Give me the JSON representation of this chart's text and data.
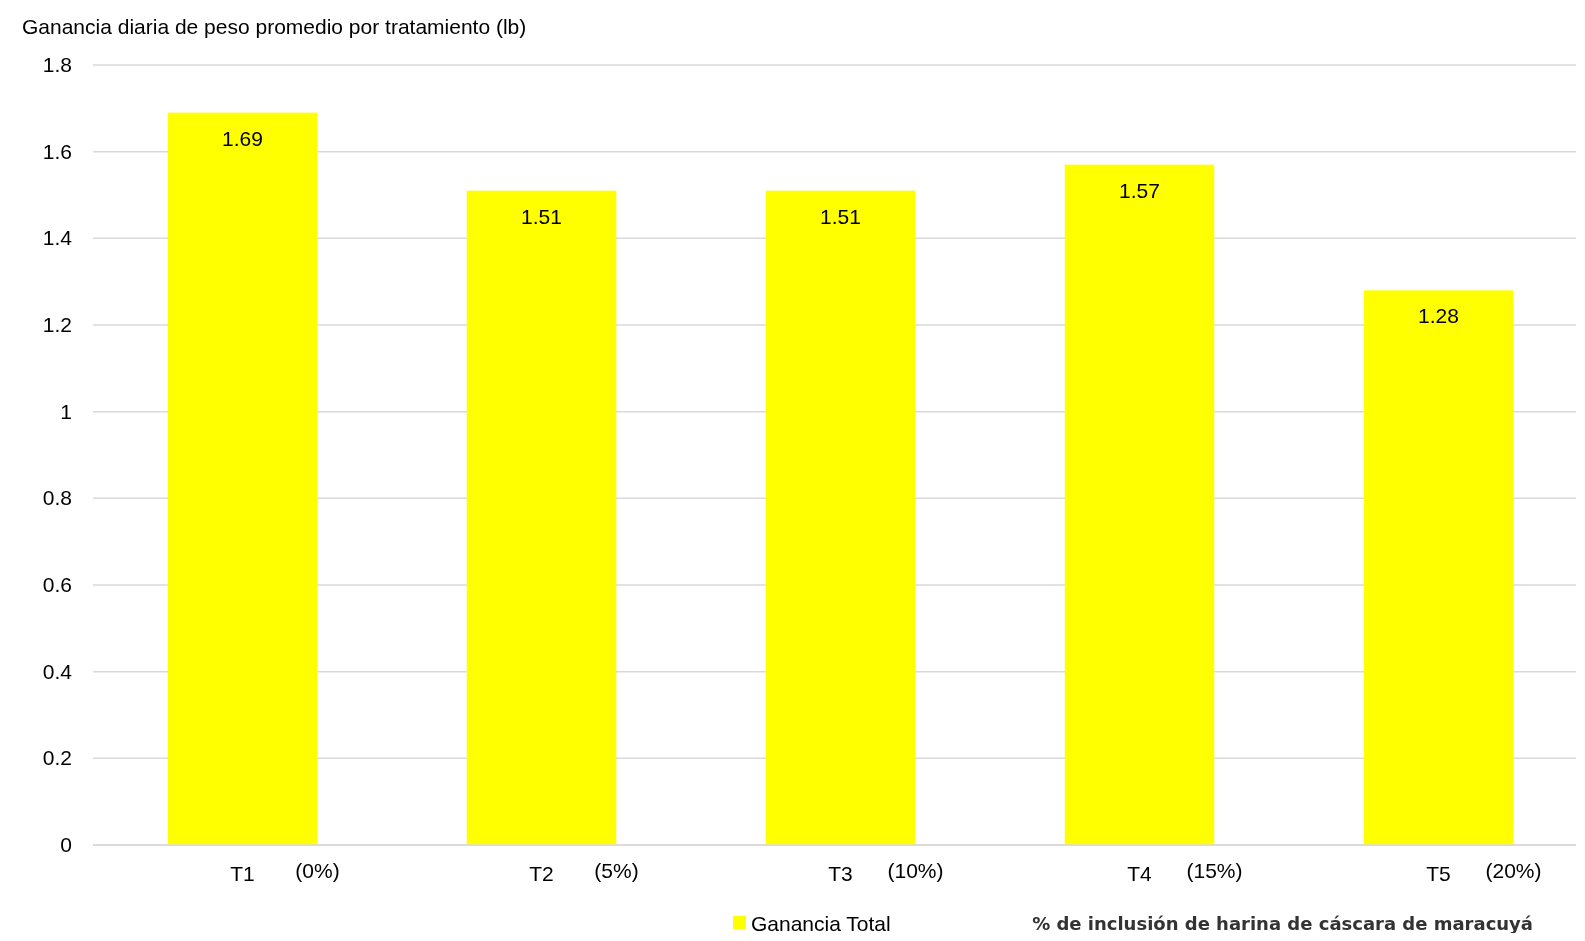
{
  "chart_data": {
    "type": "bar",
    "title": "Ganancia diaria de peso promedio por tratamiento (lb)",
    "xlabel": "% de inclusión de harina de cáscara de maracuyá",
    "categories": [
      "T1",
      "T2",
      "T3",
      "T4",
      "T5"
    ],
    "series": [
      {
        "name": "Ganancia Total",
        "color": "#ffff00",
        "values": [
          1.69,
          1.51,
          1.51,
          1.57,
          1.28
        ]
      }
    ],
    "annotations": [
      "(0%)",
      "(5%)",
      "(10%)",
      "(15%)",
      "(20%)"
    ],
    "ylim": [
      0,
      1.8
    ],
    "yticks": [
      0,
      0.2,
      0.4,
      0.6,
      0.8,
      1,
      1.2,
      1.4,
      1.6,
      1.8
    ],
    "grid": "y",
    "data_labels": true,
    "legend": "bottom"
  }
}
